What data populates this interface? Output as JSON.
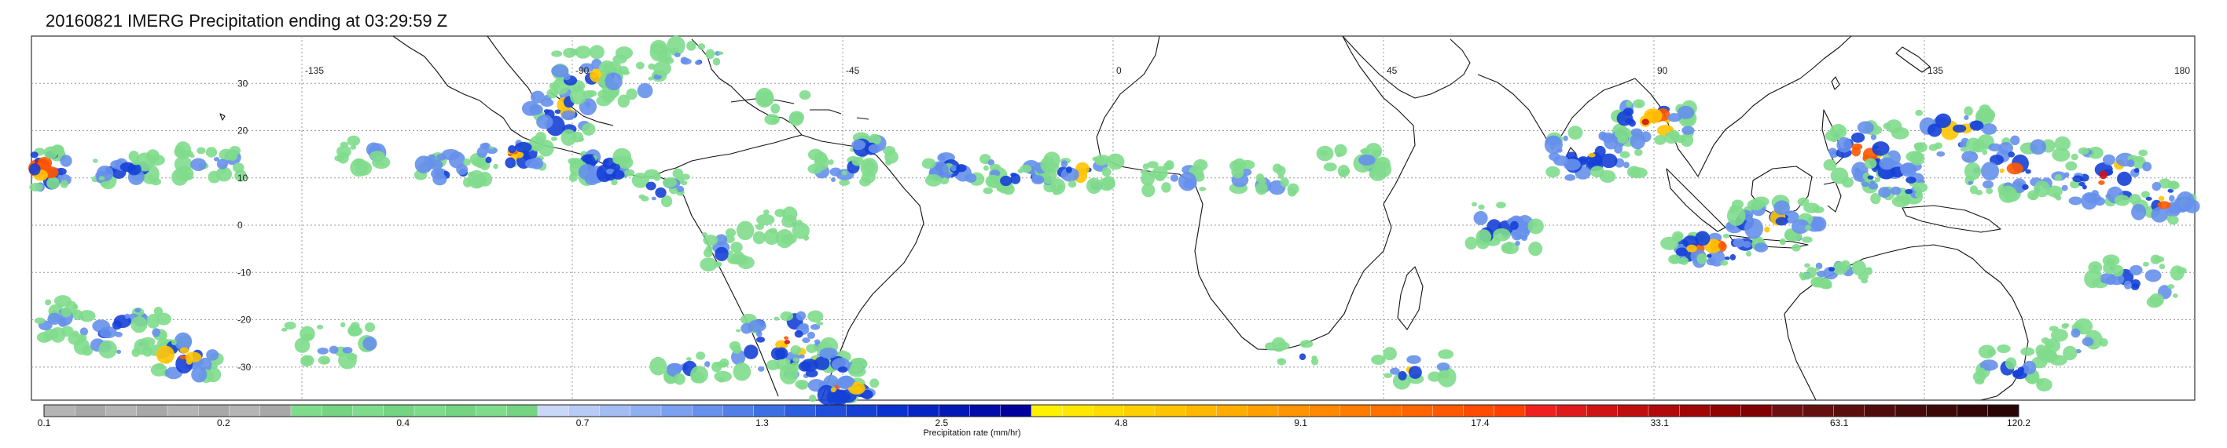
{
  "title": "20160821 IMERG Precipitation ending at 03:29:59 Z",
  "map": {
    "projection": "equirectangular",
    "lat_range": [
      -37,
      40
    ],
    "lon_range": [
      -180,
      180
    ],
    "gridlines": true,
    "longitude_labels": [
      "-135",
      "-90",
      "-45",
      "0",
      "45",
      "90",
      "135",
      "180"
    ],
    "latitude_labels": [
      "30",
      "20",
      "10",
      "0",
      "-10",
      "-20",
      "-30"
    ]
  },
  "colorbar": {
    "label": "Precipitation rate (mm/hr)",
    "tick_labels": [
      "0.1",
      "0.2",
      "0.4",
      "0.7",
      "1.3",
      "2.5",
      "4.8",
      "9.1",
      "17.4",
      "33.1",
      "63.1",
      "120.2"
    ],
    "colors": [
      "#b4b4b4",
      "#a8a8a8",
      "#b4b4b4",
      "#a8a8a8",
      "#b4b4b4",
      "#a8a8a8",
      "#b4b4b4",
      "#a8a8a8",
      "#7fdc8c",
      "#74d481",
      "#7fdc8c",
      "#74d481",
      "#7fdc8c",
      "#74d481",
      "#7fdc8c",
      "#74d481",
      "#c9d7f7",
      "#b7cbf5",
      "#a3bdf3",
      "#90aff1",
      "#7ba0ee",
      "#6690eb",
      "#5280e8",
      "#3d6fe4",
      "#2b5de0",
      "#1f4ddc",
      "#1540d6",
      "#0a32d0",
      "#0624c4",
      "#0418b6",
      "#020ca8",
      "#00009c",
      "#fff200",
      "#ffe800",
      "#ffdc00",
      "#ffd000",
      "#ffc400",
      "#ffb800",
      "#ffac00",
      "#ffa000",
      "#ff9400",
      "#ff8800",
      "#ff7c00",
      "#ff7000",
      "#ff6400",
      "#ff5800",
      "#ff4c00",
      "#ff4000",
      "#f02020",
      "#e01a1a",
      "#d01414",
      "#c00e0e",
      "#b00a0a",
      "#a00606",
      "#900404",
      "#800202",
      "#6e1010",
      "#641010",
      "#5a0e0e",
      "#500c0c",
      "#460a0a",
      "#3c0808",
      "#320606",
      "#280404"
    ]
  },
  "precip_colors": {
    "light": "#7fdc8c",
    "moderate": "#6690eb",
    "heavy": "#1540d6",
    "intense": "#ffc400",
    "severe": "#ff5800",
    "extreme": "#d01414"
  }
}
